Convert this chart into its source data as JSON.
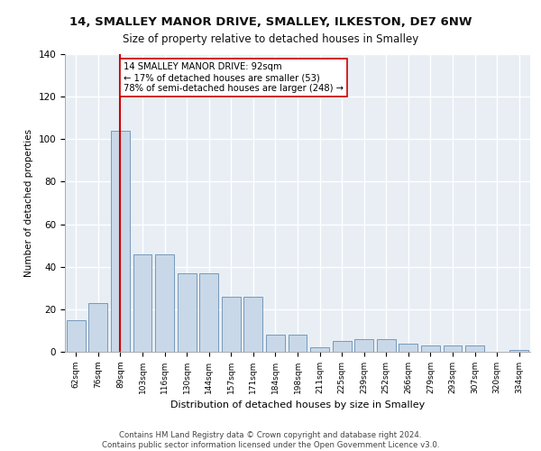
{
  "title1": "14, SMALLEY MANOR DRIVE, SMALLEY, ILKESTON, DE7 6NW",
  "title2": "Size of property relative to detached houses in Smalley",
  "xlabel": "Distribution of detached houses by size in Smalley",
  "ylabel": "Number of detached properties",
  "categories": [
    "62sqm",
    "76sqm",
    "89sqm",
    "103sqm",
    "116sqm",
    "130sqm",
    "144sqm",
    "157sqm",
    "171sqm",
    "184sqm",
    "198sqm",
    "211sqm",
    "225sqm",
    "239sqm",
    "252sqm",
    "266sqm",
    "279sqm",
    "293sqm",
    "307sqm",
    "320sqm",
    "334sqm"
  ],
  "values": [
    15,
    23,
    104,
    46,
    46,
    37,
    37,
    26,
    26,
    8,
    8,
    2,
    5,
    6,
    6,
    4,
    3,
    3,
    3,
    0,
    1
  ],
  "bar_color": "#c8d8e8",
  "bar_edge_color": "#7799bb",
  "bg_color": "#e8eef4",
  "grid_color": "#ffffff",
  "vline_x": 2,
  "vline_color": "#cc0000",
  "annotation_text": "14 SMALLEY MANOR DRIVE: 92sqm\n← 17% of detached houses are smaller (53)\n78% of semi-detached houses are larger (248) →",
  "annotation_box_color": "#ffffff",
  "annotation_box_edge": "#cc0000",
  "footer": "Contains HM Land Registry data © Crown copyright and database right 2024.\nContains public sector information licensed under the Open Government Licence v3.0.",
  "ylim": [
    0,
    140
  ],
  "yticks": [
    0,
    20,
    40,
    60,
    80,
    100,
    120,
    140
  ],
  "fig_bg": "#ffffff"
}
